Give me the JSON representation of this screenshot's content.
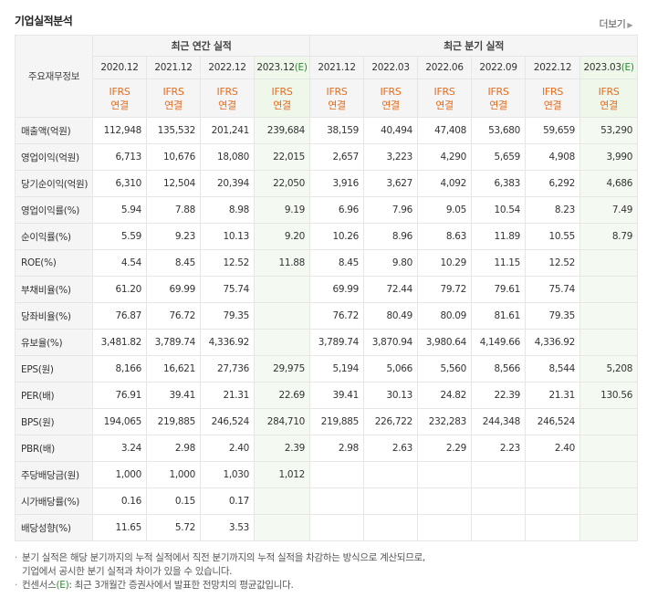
{
  "header": {
    "title": "기업실적분석",
    "more_label": "더보기",
    "more_icon": "triangle-right-icon"
  },
  "table": {
    "head_label": "주요재무정보",
    "group_annual": "최근 연간 실적",
    "group_quarter": "최근 분기 실적",
    "periods": [
      "2020.12",
      "2021.12",
      "2022.12",
      "2023.12",
      "2021.12",
      "2022.03",
      "2022.06",
      "2022.09",
      "2022.12",
      "2023.03"
    ],
    "estimate_marker": "(E)",
    "ifrs_label": "IFRS",
    "basis_label": "연결",
    "rows": [
      {
        "label": "매출액(억원)",
        "values": [
          "112,948",
          "135,532",
          "201,241",
          "239,684",
          "38,159",
          "40,494",
          "47,408",
          "53,680",
          "59,659",
          "53,290"
        ]
      },
      {
        "label": "영업이익(억원)",
        "values": [
          "6,713",
          "10,676",
          "18,080",
          "22,015",
          "2,657",
          "3,223",
          "4,290",
          "5,659",
          "4,908",
          "3,990"
        ]
      },
      {
        "label": "당기순이익(억원)",
        "values": [
          "6,310",
          "12,504",
          "20,394",
          "22,050",
          "3,916",
          "3,627",
          "4,092",
          "6,383",
          "6,292",
          "4,686"
        ]
      },
      {
        "label": "영업이익률(%)",
        "values": [
          "5.94",
          "7.88",
          "8.98",
          "9.19",
          "6.96",
          "7.96",
          "9.05",
          "10.54",
          "8.23",
          "7.49"
        ]
      },
      {
        "label": "순이익률(%)",
        "values": [
          "5.59",
          "9.23",
          "10.13",
          "9.20",
          "10.26",
          "8.96",
          "8.63",
          "11.89",
          "10.55",
          "8.79"
        ]
      },
      {
        "label": "ROE(%)",
        "values": [
          "4.54",
          "8.45",
          "12.52",
          "11.88",
          "8.45",
          "9.80",
          "10.29",
          "11.15",
          "12.52",
          ""
        ]
      },
      {
        "label": "부채비율(%)",
        "values": [
          "61.20",
          "69.99",
          "75.74",
          "",
          "69.99",
          "72.44",
          "79.72",
          "79.61",
          "75.74",
          ""
        ]
      },
      {
        "label": "당좌비율(%)",
        "values": [
          "76.87",
          "76.72",
          "79.35",
          "",
          "76.72",
          "80.49",
          "80.09",
          "81.61",
          "79.35",
          ""
        ]
      },
      {
        "label": "유보율(%)",
        "values": [
          "3,481.82",
          "3,789.74",
          "4,336.92",
          "",
          "3,789.74",
          "3,870.94",
          "3,980.64",
          "4,149.66",
          "4,336.92",
          ""
        ]
      },
      {
        "label": "EPS(원)",
        "values": [
          "8,166",
          "16,621",
          "27,736",
          "29,975",
          "5,194",
          "5,066",
          "5,560",
          "8,566",
          "8,544",
          "5,208"
        ]
      },
      {
        "label": "PER(배)",
        "values": [
          "76.91",
          "39.41",
          "21.31",
          "22.69",
          "39.41",
          "30.13",
          "24.82",
          "22.39",
          "21.31",
          "130.56"
        ]
      },
      {
        "label": "BPS(원)",
        "values": [
          "194,065",
          "219,885",
          "246,524",
          "284,710",
          "219,885",
          "226,722",
          "232,283",
          "244,348",
          "246,524",
          ""
        ]
      },
      {
        "label": "PBR(배)",
        "values": [
          "3.24",
          "2.98",
          "2.40",
          "2.39",
          "2.98",
          "2.63",
          "2.29",
          "2.23",
          "2.40",
          ""
        ]
      },
      {
        "label": "주당배당금(원)",
        "values": [
          "1,000",
          "1,000",
          "1,030",
          "1,012",
          "",
          "",
          "",
          "",
          "",
          ""
        ]
      },
      {
        "label": "시가배당률(%)",
        "values": [
          "0.16",
          "0.15",
          "0.17",
          "",
          "",
          "",
          "",
          "",
          "",
          ""
        ]
      },
      {
        "label": "배당성향(%)",
        "values": [
          "11.65",
          "5.72",
          "3.53",
          "",
          "",
          "",
          "",
          "",
          "",
          ""
        ]
      }
    ],
    "separators_before": [
      3,
      6,
      9,
      13
    ],
    "estimate_columns": [
      3,
      9
    ]
  },
  "notes": {
    "line1": "분기 실적은 해당 분기까지의 누적 실적에서 직전 분기까지의 누적 실적을 차감하는 방식으로 계산되므로,",
    "line2": "기업에서 공시한 분기 실적과 차이가 있을 수 있습니다.",
    "line3_prefix": "컨센서스",
    "line3_marker": "(E)",
    "line3_suffix": ": 최근 3개월간 증권사에서 발표한 전망치의 평균값입니다."
  },
  "colors": {
    "ifrs_orange": "#e56d1f",
    "estimate_green": "#2d8a34",
    "estimate_bg": "#f4faf2"
  }
}
